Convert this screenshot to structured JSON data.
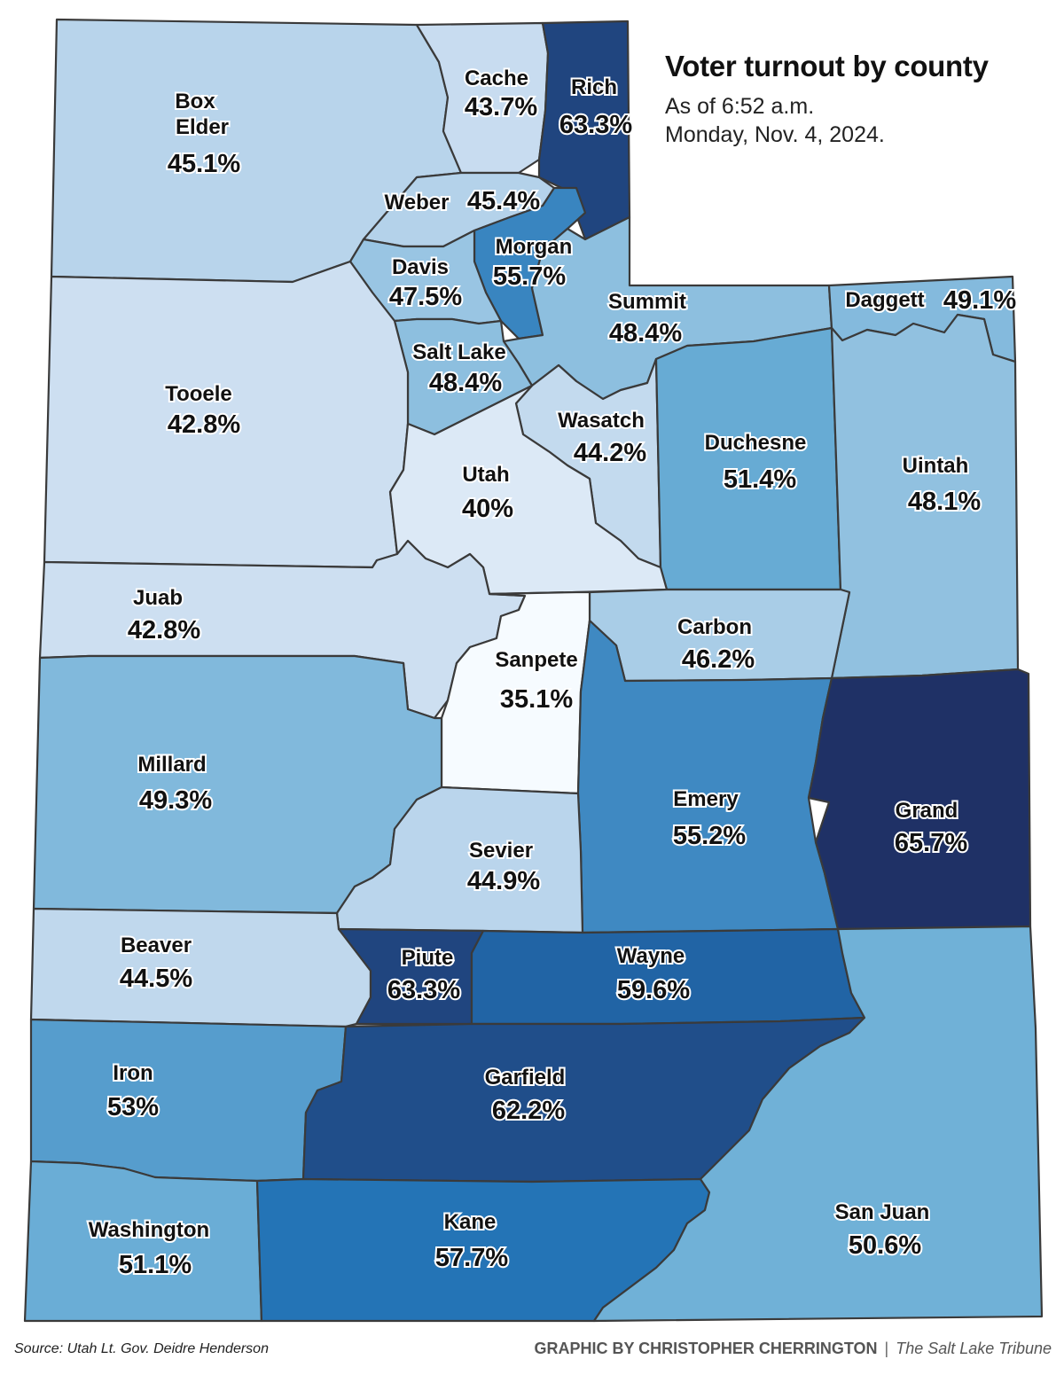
{
  "title": "Voter turnout by county",
  "subtitle_line1": "As of 6:52 a.m.",
  "subtitle_line2": "Monday, Nov. 4, 2024.",
  "source": "Source: Utah Lt. Gov. Deidre Henderson",
  "credit": "GRAPHIC BY CHRISTOPHER CHERRINGTON",
  "credit_separator": "|",
  "publication": "The Salt Lake Tribune",
  "color_scale": {
    "min_color": "#f7fbff",
    "mid_low_color": "#c6dbef",
    "mid_color": "#6baed6",
    "high_color": "#2171b5",
    "max_color": "#1f2f63"
  },
  "counties": [
    {
      "id": "box-elder",
      "name": "Box Elder",
      "name_lines": [
        "Box",
        "Elder"
      ],
      "pct_label": "45.1%",
      "value": 45.1
    },
    {
      "id": "cache",
      "name": "Cache",
      "pct_label": "43.7%",
      "value": 43.7
    },
    {
      "id": "rich",
      "name": "Rich",
      "pct_label": "63.3%",
      "value": 63.3
    },
    {
      "id": "weber",
      "name": "Weber",
      "pct_label": "45.4%",
      "value": 45.4
    },
    {
      "id": "morgan",
      "name": "Morgan",
      "pct_label": "55.7%",
      "value": 55.7
    },
    {
      "id": "davis",
      "name": "Davis",
      "pct_label": "47.5%",
      "value": 47.5
    },
    {
      "id": "summit",
      "name": "Summit",
      "pct_label": "48.4%",
      "value": 48.4
    },
    {
      "id": "daggett",
      "name": "Daggett",
      "pct_label": "49.1%",
      "value": 49.1
    },
    {
      "id": "salt-lake",
      "name": "Salt Lake",
      "pct_label": "48.4%",
      "value": 48.4
    },
    {
      "id": "tooele",
      "name": "Tooele",
      "pct_label": "42.8%",
      "value": 42.8
    },
    {
      "id": "wasatch",
      "name": "Wasatch",
      "pct_label": "44.2%",
      "value": 44.2
    },
    {
      "id": "duchesne",
      "name": "Duchesne",
      "pct_label": "51.4%",
      "value": 51.4
    },
    {
      "id": "uintah",
      "name": "Uintah",
      "pct_label": "48.1%",
      "value": 48.1
    },
    {
      "id": "utah",
      "name": "Utah",
      "pct_label": "40%",
      "value": 40
    },
    {
      "id": "juab",
      "name": "Juab",
      "pct_label": "42.8%",
      "value": 42.8
    },
    {
      "id": "carbon",
      "name": "Carbon",
      "pct_label": "46.2%",
      "value": 46.2
    },
    {
      "id": "sanpete",
      "name": "Sanpete",
      "pct_label": "35.1%",
      "value": 35.1
    },
    {
      "id": "millard",
      "name": "Millard",
      "pct_label": "49.3%",
      "value": 49.3
    },
    {
      "id": "emery",
      "name": "Emery",
      "pct_label": "55.2%",
      "value": 55.2
    },
    {
      "id": "grand",
      "name": "Grand",
      "pct_label": "65.7%",
      "value": 65.7
    },
    {
      "id": "sevier",
      "name": "Sevier",
      "pct_label": "44.9%",
      "value": 44.9
    },
    {
      "id": "beaver",
      "name": "Beaver",
      "pct_label": "44.5%",
      "value": 44.5
    },
    {
      "id": "piute",
      "name": "Piute",
      "pct_label": "63.3%",
      "value": 63.3
    },
    {
      "id": "wayne",
      "name": "Wayne",
      "pct_label": "59.6%",
      "value": 59.6
    },
    {
      "id": "iron",
      "name": "Iron",
      "pct_label": "53%",
      "value": 53
    },
    {
      "id": "garfield",
      "name": "Garfield",
      "pct_label": "62.2%",
      "value": 62.2
    },
    {
      "id": "washington",
      "name": "Washington",
      "pct_label": "51.1%",
      "value": 51.1
    },
    {
      "id": "kane",
      "name": "Kane",
      "pct_label": "57.7%",
      "value": 57.7
    },
    {
      "id": "san-juan",
      "name": "San Juan",
      "pct_label": "50.6%",
      "value": 50.6
    }
  ]
}
